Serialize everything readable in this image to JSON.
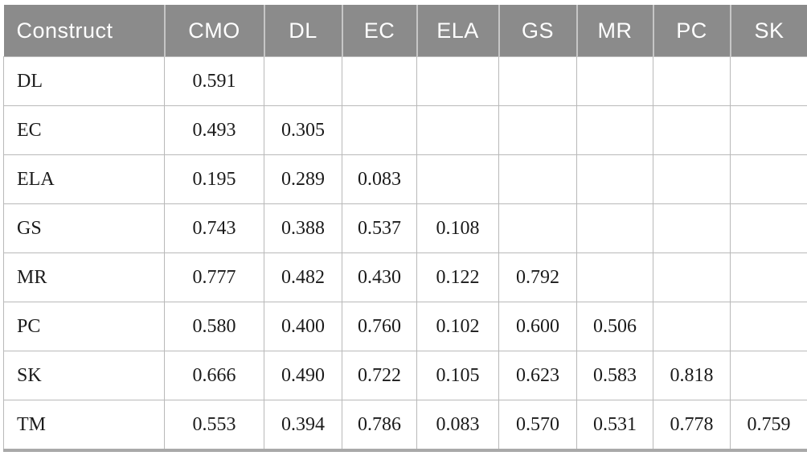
{
  "table": {
    "description": "Construct correlation (HTMT) matrix",
    "columns": [
      "Construct",
      "CMO",
      "DL",
      "EC",
      "ELA",
      "GS",
      "MR",
      "PC",
      "SK"
    ],
    "rows": [
      {
        "label": "DL",
        "values": [
          "0.591",
          "",
          "",
          "",
          "",
          "",
          "",
          ""
        ]
      },
      {
        "label": "EC",
        "values": [
          "0.493",
          "0.305",
          "",
          "",
          "",
          "",
          "",
          ""
        ]
      },
      {
        "label": "ELA",
        "values": [
          "0.195",
          "0.289",
          "0.083",
          "",
          "",
          "",
          "",
          ""
        ]
      },
      {
        "label": "GS",
        "values": [
          "0.743",
          "0.388",
          "0.537",
          "0.108",
          "",
          "",
          "",
          ""
        ]
      },
      {
        "label": "MR",
        "values": [
          "0.777",
          "0.482",
          "0.430",
          "0.122",
          "0.792",
          "",
          "",
          ""
        ]
      },
      {
        "label": "PC",
        "values": [
          "0.580",
          "0.400",
          "0.760",
          "0.102",
          "0.600",
          "0.506",
          "",
          ""
        ]
      },
      {
        "label": "SK",
        "values": [
          "0.666",
          "0.490",
          "0.722",
          "0.105",
          "0.623",
          "0.583",
          "0.818",
          ""
        ]
      },
      {
        "label": "TM",
        "values": [
          "0.553",
          "0.394",
          "0.786",
          "0.083",
          "0.570",
          "0.531",
          "0.778",
          "0.759"
        ]
      }
    ]
  },
  "colors": {
    "header_background": "#8b8b8b",
    "header_text": "#ffffff",
    "grid_line": "#b9b9b9",
    "bottom_border": "#a9a9a9",
    "body_text": "#1b1b1b"
  }
}
